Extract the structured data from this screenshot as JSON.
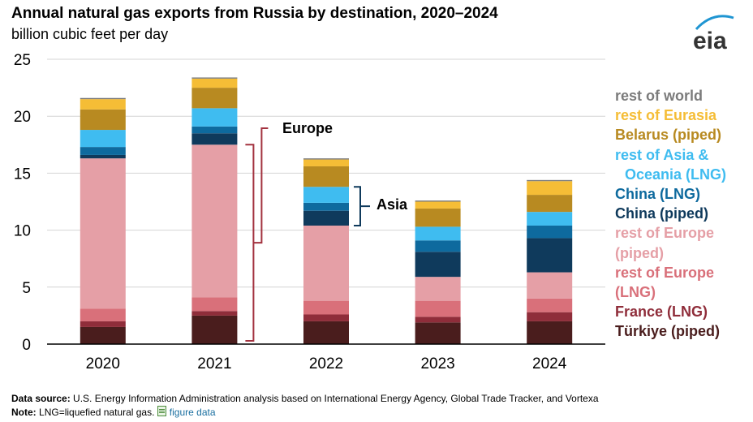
{
  "title": "Annual natural gas exports from Russia by destination, 2020–2024",
  "subtitle": "billion cubic feet per day",
  "logo_text": "eia",
  "footer": {
    "source_label": "Data source:",
    "source_text": "U.S. Energy Information Administration analysis based on International Energy Agency, Global Trade Tracker, and Vortexa",
    "note_label": "Note:",
    "note_text": "LNG=liquefied natural gas.",
    "link_text": "figure data"
  },
  "annotations": {
    "europe": "Europe",
    "asia": "Asia"
  },
  "legend_lines": [
    "rest of world",
    "rest of Eurasia",
    "Belarus (piped)",
    "rest of Asia &",
    "Oceania (LNG)",
    "China (LNG)",
    "China (piped)",
    "rest of Europe",
    "(piped)",
    "rest of Europe",
    "(LNG)",
    "France (LNG)",
    "Türkiye (piped)"
  ],
  "chart_data": {
    "type": "bar",
    "stacked": true,
    "categories": [
      "2020",
      "2021",
      "2022",
      "2023",
      "2024"
    ],
    "ylim": [
      0,
      25
    ],
    "yticks": [
      0,
      5,
      10,
      15,
      20,
      25
    ],
    "grid": true,
    "legend_position": "right",
    "series": [
      {
        "name": "Türkiye (piped)",
        "color": "#4a1d1d",
        "values": [
          1.5,
          2.5,
          2.0,
          1.9,
          2.0
        ]
      },
      {
        "name": "France (LNG)",
        "color": "#8f2d3a",
        "values": [
          0.5,
          0.4,
          0.6,
          0.5,
          0.8
        ]
      },
      {
        "name": "rest of Europe (LNG)",
        "color": "#d9707a",
        "values": [
          1.1,
          1.2,
          1.2,
          1.4,
          1.2
        ]
      },
      {
        "name": "rest of Europe (piped)",
        "color": "#e59fa6",
        "values": [
          13.2,
          13.4,
          6.6,
          2.1,
          2.3
        ]
      },
      {
        "name": "China (piped)",
        "color": "#0f3a5c",
        "values": [
          0.3,
          1.0,
          1.3,
          2.2,
          3.0
        ]
      },
      {
        "name": "China (LNG)",
        "color": "#0e6a9e",
        "values": [
          0.7,
          0.6,
          0.7,
          1.0,
          1.1
        ]
      },
      {
        "name": "rest of Asia & Oceania (LNG)",
        "color": "#3fbcf0",
        "values": [
          1.5,
          1.6,
          1.4,
          1.2,
          1.2
        ]
      },
      {
        "name": "Belarus (piped)",
        "color": "#b88a21",
        "values": [
          1.8,
          1.8,
          1.8,
          1.6,
          1.5
        ]
      },
      {
        "name": "rest of Eurasia",
        "color": "#f5bd36",
        "values": [
          0.9,
          0.8,
          0.6,
          0.6,
          1.2
        ]
      },
      {
        "name": "rest of world",
        "color": "#7b7b7b",
        "values": [
          0.1,
          0.1,
          0.1,
          0.1,
          0.1
        ]
      }
    ]
  },
  "colors": {
    "europe": "#a3323f",
    "asia": "#0f3a5c",
    "eia_blue": "#1f95d2",
    "legend": [
      "#7b7b7b",
      "#f5bd36",
      "#b88a21",
      "#3fbcf0",
      "#3fbcf0",
      "#0e6a9e",
      "#0f3a5c",
      "#e59fa6",
      "#e59fa6",
      "#d9707a",
      "#d9707a",
      "#8f2d3a",
      "#4a1d1d"
    ]
  }
}
